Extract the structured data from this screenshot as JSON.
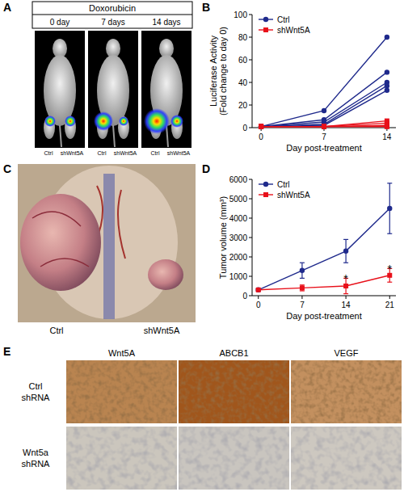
{
  "panel_labels": [
    "A",
    "B",
    "C",
    "D",
    "E"
  ],
  "panel_a": {
    "header": "Doxorubicin",
    "columns": [
      "0 day",
      "7 days",
      "14 days"
    ],
    "mouse_labels": [
      "Ctrl",
      "shWnt5A"
    ]
  },
  "panel_c": {
    "labels": [
      "Ctrl",
      "shWnt5A"
    ]
  },
  "panel_e": {
    "columns": [
      "Wnt5A",
      "ABCB1",
      "VEGF"
    ],
    "rows": [
      [
        "Ctrl",
        "shRNA"
      ],
      [
        "Wnt5a",
        "shRNA"
      ]
    ]
  },
  "chart_data": [
    {
      "type": "line",
      "y_label": [
        "Luciferase Activity",
        "(Fold change to day 0)"
      ],
      "x_label": "Day post-treatment",
      "x": [
        0,
        7,
        14
      ],
      "xlim": [
        -1,
        15
      ],
      "xticks": [
        0,
        7,
        14
      ],
      "ylim": [
        0,
        100
      ],
      "yticks": [
        0,
        20,
        40,
        60,
        80,
        100
      ],
      "legend": "upper-left",
      "grid": false,
      "series": [
        {
          "name": "Ctrl",
          "color": "#1f2a8c",
          "marker": "circle",
          "values": [
            1,
            15,
            80
          ]
        },
        {
          "name": "Ctrl",
          "color": "#1f2a8c",
          "marker": "circle",
          "values": [
            1,
            7,
            49
          ]
        },
        {
          "name": "Ctrl",
          "color": "#1f2a8c",
          "marker": "circle",
          "values": [
            1,
            5,
            40
          ]
        },
        {
          "name": "Ctrl",
          "color": "#1f2a8c",
          "marker": "circle",
          "values": [
            1,
            3,
            37
          ]
        },
        {
          "name": "Ctrl",
          "color": "#1f2a8c",
          "marker": "circle",
          "values": [
            1,
            2,
            33
          ]
        },
        {
          "name": "shWnt5A",
          "color": "#e8101a",
          "marker": "square",
          "values": [
            1,
            1,
            6
          ]
        },
        {
          "name": "shWnt5A",
          "color": "#e8101a",
          "marker": "square",
          "values": [
            1,
            1,
            4
          ]
        },
        {
          "name": "shWnt5A",
          "color": "#e8101a",
          "marker": "square",
          "values": [
            1,
            1,
            2
          ]
        },
        {
          "name": "shWnt5A",
          "color": "#e8101a",
          "marker": "square",
          "values": [
            1,
            1,
            1
          ]
        },
        {
          "name": "shWnt5A",
          "color": "#e8101a",
          "marker": "square",
          "values": [
            1,
            1,
            1
          ]
        }
      ]
    },
    {
      "type": "line",
      "y_label": [
        "Tumor volume (mm³)"
      ],
      "x_label": "Day post-treatment",
      "x": [
        0,
        7,
        14,
        21
      ],
      "xlim": [
        -1,
        22
      ],
      "xticks": [
        0,
        7,
        14,
        21
      ],
      "ylim": [
        0,
        6000
      ],
      "yticks": [
        0,
        1000,
        2000,
        3000,
        4000,
        5000,
        6000
      ],
      "legend": "upper-left",
      "grid": false,
      "series": [
        {
          "name": "Ctrl",
          "color": "#1f2a8c",
          "marker": "circle",
          "values": [
            300,
            1300,
            2300,
            4500
          ],
          "errors": [
            50,
            400,
            600,
            1300
          ]
        },
        {
          "name": "shWnt5A",
          "color": "#e8101a",
          "marker": "square",
          "values": [
            300,
            400,
            500,
            1050
          ],
          "errors": [
            50,
            150,
            400,
            350
          ]
        }
      ],
      "annotations": [
        {
          "text": "*",
          "x": 14,
          "y": 1000
        },
        {
          "text": "*",
          "x": 21,
          "y": 1500
        }
      ]
    }
  ]
}
